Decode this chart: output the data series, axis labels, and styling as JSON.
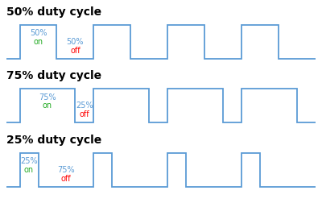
{
  "panels": [
    {
      "title": "50% duty cycle",
      "duty": 0.5,
      "on_pct": "50%",
      "on_word": "on",
      "off_pct": "50%",
      "off_word": "off"
    },
    {
      "title": "75% duty cycle",
      "duty": 0.75,
      "on_pct": "75%",
      "on_word": "on",
      "off_pct": "25%",
      "off_word": "off"
    },
    {
      "title": "25% duty cycle",
      "duty": 0.25,
      "on_pct": "25%",
      "on_word": "on",
      "off_pct": "75%",
      "off_word": "off"
    }
  ],
  "signal_color": "#5b9bd5",
  "num_cycles": 4,
  "title_fontsize": 10,
  "label_fontsize": 7,
  "background": "#ffffff",
  "lead": 0.18,
  "period": 1.0,
  "signal_high": 1.0,
  "signal_low": 0.0,
  "ylim_low": -0.35,
  "ylim_high": 1.55,
  "linewidth": 1.3
}
